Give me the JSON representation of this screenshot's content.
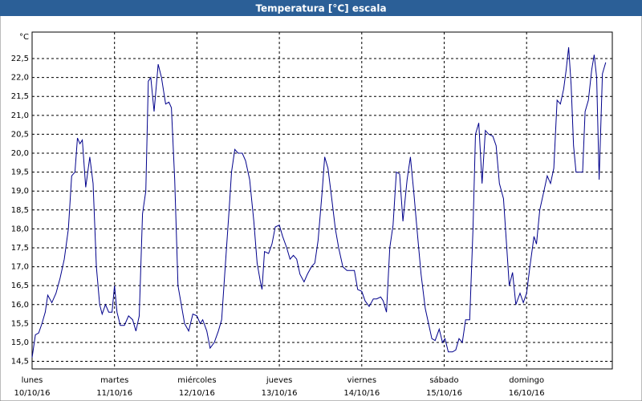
{
  "chart_data": {
    "type": "line",
    "title": "Temperatura [°C] escala",
    "y_label": "°C",
    "x": [
      0,
      0.04,
      0.08,
      0.12,
      0.16,
      0.19,
      0.24,
      0.29,
      0.34,
      0.39,
      0.44,
      0.48,
      0.52,
      0.55,
      0.58,
      0.61,
      0.65,
      0.7,
      0.74,
      0.78,
      0.82,
      0.85,
      0.89,
      0.93,
      0.97,
      1.0,
      1.03,
      1.07,
      1.12,
      1.17,
      1.22,
      1.26,
      1.3,
      1.34,
      1.38,
      1.41,
      1.44,
      1.48,
      1.53,
      1.57,
      1.62,
      1.66,
      1.69,
      1.73,
      1.77,
      1.81,
      1.85,
      1.9,
      1.95,
      2.0,
      2.04,
      2.07,
      2.12,
      2.16,
      2.21,
      2.26,
      2.3,
      2.35,
      2.39,
      2.42,
      2.46,
      2.5,
      2.55,
      2.59,
      2.64,
      2.69,
      2.73,
      2.77,
      2.79,
      2.82,
      2.87,
      2.91,
      2.95,
      3.0,
      3.04,
      3.09,
      3.13,
      3.17,
      3.21,
      3.25,
      3.3,
      3.34,
      3.39,
      3.43,
      3.47,
      3.52,
      3.55,
      3.59,
      3.63,
      3.68,
      3.72,
      3.77,
      3.82,
      3.87,
      3.91,
      3.95,
      4.0,
      4.04,
      4.09,
      4.14,
      4.18,
      4.23,
      4.26,
      4.3,
      4.34,
      4.38,
      4.42,
      4.46,
      4.5,
      4.55,
      4.59,
      4.63,
      4.67,
      4.72,
      4.77,
      4.81,
      4.85,
      4.89,
      4.94,
      4.98,
      5.01,
      5.05,
      5.1,
      5.14,
      5.18,
      5.22,
      5.26,
      5.31,
      5.35,
      5.38,
      5.42,
      5.46,
      5.5,
      5.54,
      5.59,
      5.63,
      5.67,
      5.72,
      5.76,
      5.79,
      5.83,
      5.87,
      5.92,
      5.96,
      6.0,
      6.04,
      6.09,
      6.12,
      6.16,
      6.21,
      6.25,
      6.29,
      6.33,
      6.37,
      6.41,
      6.45,
      6.48,
      6.51,
      6.54,
      6.57,
      6.6,
      6.64,
      6.68,
      6.71,
      6.75,
      6.79,
      6.82,
      6.85,
      6.88,
      6.92,
      6.96
    ],
    "series": [
      {
        "color": "#00008b",
        "values": [
          14.6,
          15.2,
          15.25,
          15.5,
          15.8,
          16.25,
          16.05,
          16.3,
          16.7,
          17.2,
          18.0,
          19.4,
          19.5,
          20.4,
          20.25,
          20.35,
          19.1,
          19.9,
          19.2,
          17.0,
          16.0,
          15.75,
          16.0,
          15.8,
          15.8,
          16.5,
          15.8,
          15.45,
          15.45,
          15.7,
          15.6,
          15.3,
          15.7,
          18.4,
          19.0,
          21.9,
          22.0,
          21.1,
          22.35,
          22.0,
          21.3,
          21.35,
          21.2,
          19.3,
          16.5,
          16.0,
          15.5,
          15.3,
          15.75,
          15.7,
          15.5,
          15.6,
          15.3,
          14.85,
          15.0,
          15.3,
          15.6,
          17.2,
          18.5,
          19.5,
          20.1,
          20.0,
          20.0,
          19.8,
          19.3,
          18.2,
          17.1,
          16.6,
          16.4,
          17.4,
          17.35,
          17.6,
          18.05,
          18.1,
          17.8,
          17.5,
          17.2,
          17.3,
          17.2,
          16.8,
          16.6,
          16.8,
          17.0,
          17.1,
          17.7,
          19.0,
          19.9,
          19.6,
          18.9,
          18.0,
          17.5,
          17.0,
          16.9,
          16.9,
          16.9,
          16.4,
          16.35,
          16.1,
          15.95,
          16.15,
          16.15,
          16.2,
          16.1,
          15.8,
          17.5,
          18.1,
          19.5,
          19.45,
          18.2,
          19.3,
          19.9,
          19.0,
          18.0,
          16.8,
          15.9,
          15.5,
          15.1,
          15.05,
          15.35,
          15.0,
          15.1,
          14.75,
          14.75,
          14.8,
          15.1,
          15.0,
          15.6,
          15.6,
          18.0,
          20.5,
          20.8,
          19.2,
          20.6,
          20.5,
          20.45,
          20.2,
          19.2,
          18.8,
          17.5,
          16.5,
          16.85,
          16.0,
          16.3,
          16.05,
          16.3,
          17.0,
          17.8,
          17.6,
          18.5,
          19.0,
          19.4,
          19.2,
          19.6,
          21.4,
          21.3,
          21.7,
          22.2,
          22.8,
          21.8,
          20.2,
          19.5,
          19.5,
          19.5,
          21.1,
          21.4,
          22.2,
          22.6,
          22.0,
          19.3,
          22.1,
          22.4
        ]
      }
    ],
    "xlim": [
      0,
      7.04
    ],
    "ylim": [
      14.3,
      23.2
    ],
    "xticks": [
      {
        "value": 0,
        "label": "lunes"
      },
      {
        "value": 1,
        "label": "martes"
      },
      {
        "value": 2,
        "label": "miércoles"
      },
      {
        "value": 3,
        "label": "jueves"
      },
      {
        "value": 4,
        "label": "viernes"
      },
      {
        "value": 5,
        "label": "sábado"
      },
      {
        "value": 6,
        "label": "domingo"
      }
    ],
    "xtick_dates": [
      "10/10/16",
      "11/10/16",
      "12/10/16",
      "13/10/16",
      "14/10/16",
      "15/10/16",
      "16/10/16"
    ],
    "yticks": [
      {
        "value": 14.5,
        "label": "14,5"
      },
      {
        "value": 15,
        "label": "15,0"
      },
      {
        "value": 15.5,
        "label": "15,5"
      },
      {
        "value": 16,
        "label": "16,0"
      },
      {
        "value": 16.5,
        "label": "16,5"
      },
      {
        "value": 17,
        "label": "17,0"
      },
      {
        "value": 17.5,
        "label": "17,5"
      },
      {
        "value": 18,
        "label": "18,0"
      },
      {
        "value": 18.5,
        "label": "18,5"
      },
      {
        "value": 19,
        "label": "19,0"
      },
      {
        "value": 19.5,
        "label": "19,5"
      },
      {
        "value": 20,
        "label": "20,0"
      },
      {
        "value": 20.5,
        "label": "20,5"
      },
      {
        "value": 21,
        "label": "21,0"
      },
      {
        "value": 21.5,
        "label": "21,5"
      },
      {
        "value": 22,
        "label": "22,0"
      },
      {
        "value": 22.5,
        "label": "22,5"
      }
    ],
    "grid": true
  }
}
